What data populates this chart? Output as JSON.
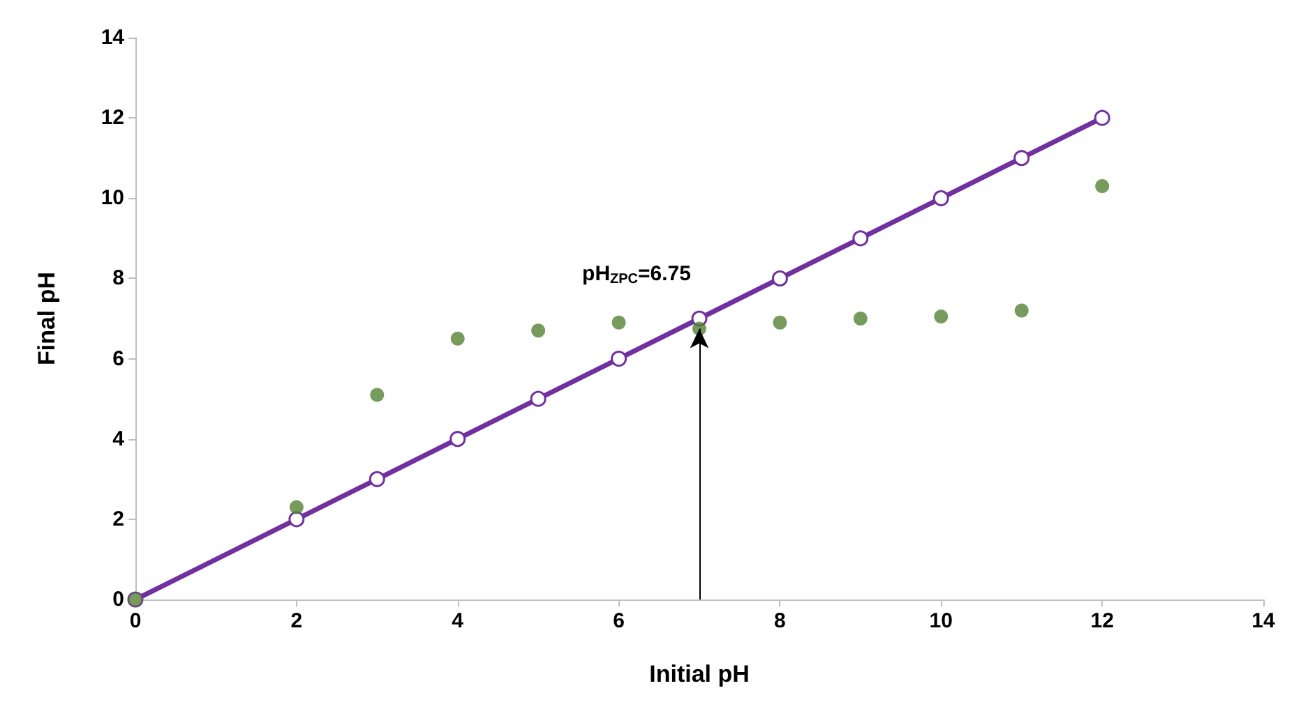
{
  "chart_data": {
    "type": "scatter",
    "xlabel": "Initial pH",
    "ylabel": "Final pH",
    "xlim": [
      0,
      14
    ],
    "xticks": [
      0,
      2,
      4,
      6,
      8,
      10,
      12,
      14
    ],
    "ylim": [
      0,
      14
    ],
    "yticks": [
      0,
      2,
      4,
      6,
      8,
      10,
      12,
      14
    ],
    "grid": false,
    "series": [
      {
        "color": "#548235",
        "marker": "circle",
        "x": [
          0,
          2,
          3,
          4,
          5,
          6,
          7,
          8,
          9,
          10,
          11,
          12
        ],
        "values": [
          0,
          2.3,
          5.1,
          6.5,
          6.7,
          6.9,
          6.75,
          6.9,
          7.0,
          7.05,
          7.2,
          10.3
        ]
      },
      {
        "type": "line",
        "color": "#7030a0",
        "marker": "circle",
        "line_style": "solid",
        "x": [
          0,
          2,
          3,
          4,
          5,
          6,
          7,
          8,
          9,
          10,
          11,
          12
        ],
        "values": [
          0,
          2,
          3,
          4,
          5,
          6,
          7,
          8,
          9,
          10,
          11,
          12
        ]
      }
    ],
    "annotations": [
      {
        "text": "pH$_{ZPC}$=6.75",
        "x": 7,
        "y": 6.75
      }
    ]
  }
}
